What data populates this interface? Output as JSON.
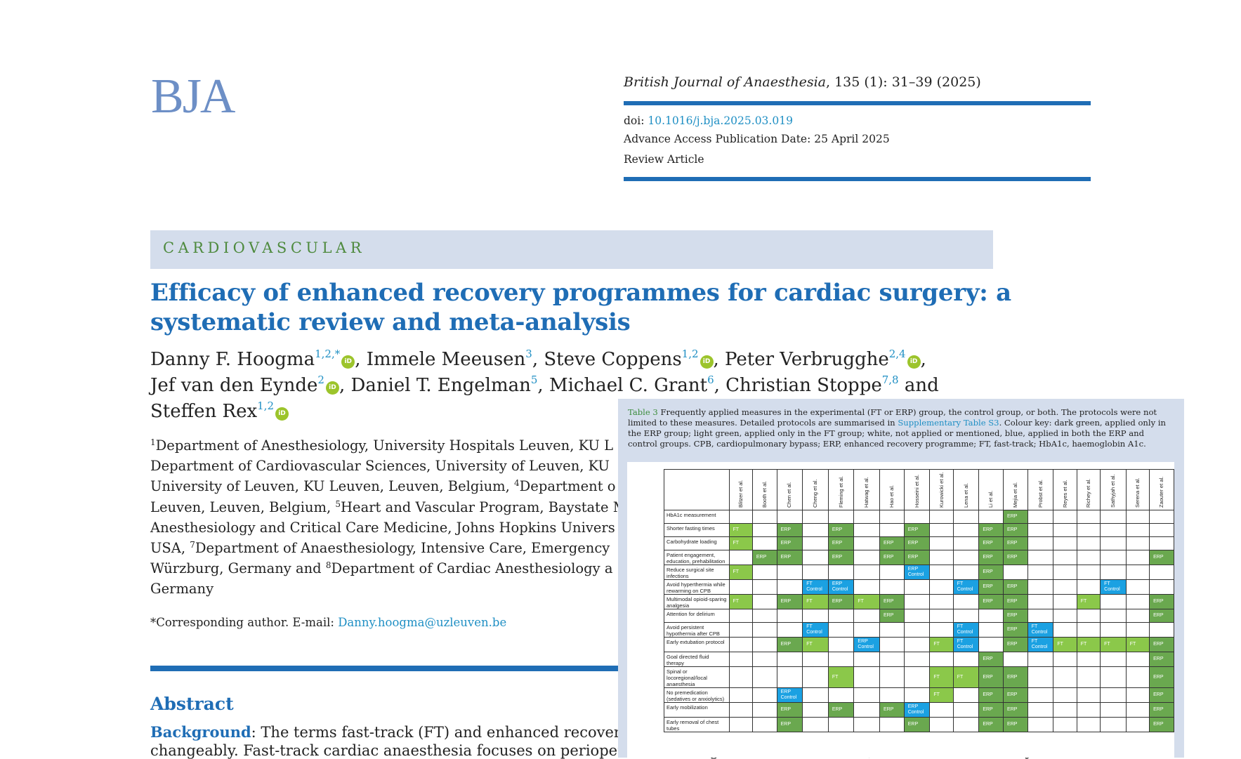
{
  "header": {
    "logo": "BJA",
    "journal_name": "British Journal of Anaesthesia",
    "journal_citation": ", 135 (1): 31–39 (2025)",
    "doi_label": "doi:",
    "doi_value": "10.1016/j.bja.2025.03.019",
    "publication_date": "Advance Access Publication Date: 25 April 2025",
    "article_type": "Review Article"
  },
  "section_label": "CARDIOVASCULAR",
  "title": "Efficacy of enhanced recovery programmes for cardiac surgery: a systematic review and meta-analysis",
  "authors": {
    "a1": "Danny F. Hoogma",
    "a1_sup": "1,2,*",
    "a2": ", Immele Meeusen",
    "a2_sup": "3",
    "a3": ", Steve Coppens",
    "a3_sup": "1,2",
    "a4": ", Peter Verbrugghe",
    "a4_sup": "2,4",
    "sep1": ",",
    "a5": "Jef van den Eynde",
    "a5_sup": "2",
    "a6": ", Daniel T. Engelman",
    "a6_sup": "5",
    "a7": ", Michael C. Grant",
    "a7_sup": "6",
    "a8": ", Christian Stoppe",
    "a8_sup": "7,8",
    "and": " and",
    "a9": "Steffen Rex",
    "a9_sup": "1,2",
    "orcid_icon": "iD"
  },
  "affiliations": {
    "l1_sup": "1",
    "l1": "Department of Anesthesiology, University Hospitals Leuven, KU L",
    "l2": "Department of Cardiovascular Sciences, University of Leuven, KU",
    "l3_a": "University of Leuven, KU Leuven, Leuven, Belgium, ",
    "l3_sup": "4",
    "l3_b": "Department o",
    "l4_a": "Leuven, Leuven, Belgium, ",
    "l4_sup": "5",
    "l4_b": "Heart and Vascular Program, Baystate M",
    "l5": "Anesthesiology and Critical Care Medicine, Johns Hopkins Univers",
    "l6_a": "USA, ",
    "l6_sup": "7",
    "l6_b": "Department of Anaesthesiology, Intensive Care, Emergency",
    "l7_a": "Würzburg, Germany and ",
    "l7_sup": "8",
    "l7_b": "Department of Cardiac Anesthesiology a",
    "l8": "Germany"
  },
  "corresponding": {
    "label": "*Corresponding author. E-mail: ",
    "email": "Danny.hoogma@uzleuven.be"
  },
  "abstract": {
    "heading": "Abstract",
    "bg_label": "Background",
    "line1": ": The terms fast-track (FT) and enhanced recovery a",
    "line2": "changeably. Fast-track cardiac anaesthesia focuses on perioperative strategies, whereas ERAS (or enhanced recovery"
  },
  "table3": {
    "label": "Table 3",
    "caption_a": " Frequently applied measures in the experimental (FT or ERP) group, the control group, or both. The protocols were not limited to these measures. Detailed protocols are summarised in ",
    "caption_link": "Supplementary Table S3",
    "caption_b": ". Colour key: dark green, applied only in the ERP group; light green, applied only in the FT group; white, not applied or mentioned, blue, applied in both the ERP and control groups. CPB, cardiopulmonary bypass; ERP, enhanced recovery programme; FT, fast-track; HbA1c, haemoglobin A1c.",
    "colors": {
      "dark_green": "#6aa84f",
      "light_green": "#8bc84a",
      "blue": "#1ba1e2",
      "white": "#ffffff"
    },
    "columns": [
      "Blitzer et al.",
      "Booth et al.",
      "Chen et al.",
      "Cheng et al.",
      "Fleming et al.",
      "Hatwag et al.",
      "Hao et al.",
      "Hosseini et al.",
      "Kurowicki et al.",
      "Lena et al.",
      "Li et al.",
      "Mejia et al.",
      "Probst et al.",
      "Reyes et al.",
      "Richey et al.",
      "Sathyjah et al.",
      "Serena et al.",
      "Zaouter et al."
    ],
    "rows": [
      {
        "label": "HbA1c measurement",
        "cells": [
          "",
          "",
          "",
          "",
          "",
          "",
          "",
          "",
          "",
          "",
          "",
          "E",
          "",
          "",
          "",
          "",
          "",
          ""
        ]
      },
      {
        "label": "Shorter fasting times",
        "cells": [
          "F",
          "",
          "E",
          "",
          "E",
          "",
          "",
          "E",
          "",
          "",
          "E",
          "E",
          "",
          "",
          "",
          "",
          "",
          ""
        ]
      },
      {
        "label": "Carbohydrate loading",
        "cells": [
          "F",
          "",
          "E",
          "",
          "E",
          "",
          "E",
          "E",
          "",
          "",
          "E",
          "E",
          "",
          "",
          "",
          "",
          "",
          ""
        ]
      },
      {
        "label": "Patient engagement, education, prehabilitation",
        "cells": [
          "",
          "E",
          "E",
          "",
          "E",
          "",
          "E",
          "E",
          "",
          "",
          "E",
          "E",
          "",
          "",
          "",
          "",
          "",
          "E"
        ]
      },
      {
        "label": "Reduce surgical site infections",
        "cells": [
          "F",
          "",
          "",
          "",
          "",
          "",
          "",
          "EC",
          "",
          "",
          "E",
          "",
          "",
          "",
          "",
          "",
          "",
          ""
        ]
      },
      {
        "label": "Avoid hyperthermia while rewarming on CPB",
        "cells": [
          "",
          "",
          "",
          "FC",
          "EC",
          "",
          "",
          "",
          "",
          "FC",
          "E",
          "E",
          "",
          "",
          "",
          "FC",
          "",
          ""
        ]
      },
      {
        "label": "Multimodal opioid-sparing analgesia",
        "cells": [
          "F",
          "",
          "E",
          "F",
          "E",
          "F",
          "E",
          "",
          "",
          "",
          "E",
          "E",
          "",
          "",
          "F",
          "",
          "",
          "E"
        ]
      },
      {
        "label": "Attention for delirium",
        "cells": [
          "",
          "",
          "",
          "",
          "",
          "",
          "E",
          "",
          "",
          "",
          "",
          "E",
          "",
          "",
          "",
          "",
          "",
          "E"
        ]
      },
      {
        "label": "Avoid persistent hypothermia after CPB",
        "cells": [
          "",
          "",
          "",
          "FC",
          "",
          "",
          "",
          "",
          "",
          "FC",
          "",
          "E",
          "FC",
          "",
          "",
          "",
          "",
          ""
        ]
      },
      {
        "label": "Early extubation protocol",
        "cells": [
          "",
          "",
          "E",
          "F",
          "",
          "EC",
          "",
          "",
          "F",
          "FC",
          "",
          "E",
          "FC",
          "F",
          "F",
          "F",
          "F",
          "E"
        ]
      },
      {
        "label": "Goal directed fluid therapy",
        "cells": [
          "",
          "",
          "",
          "",
          "",
          "",
          "",
          "",
          "",
          "",
          "E",
          "",
          "",
          "",
          "",
          "",
          "",
          "E"
        ]
      },
      {
        "label": "Spinal or locoregional/local anaesthesia",
        "cells": [
          "",
          "",
          "",
          "",
          "F",
          "",
          "",
          "",
          "F",
          "F",
          "E",
          "E",
          "",
          "",
          "",
          "",
          "",
          "E"
        ]
      },
      {
        "label": "No premedication (sedatives or anxiolytics)",
        "cells": [
          "",
          "",
          "EC",
          "",
          "",
          "",
          "",
          "",
          "F",
          "",
          "E",
          "E",
          "",
          "",
          "",
          "",
          "",
          "E"
        ]
      },
      {
        "label": "Early mobilization",
        "cells": [
          "",
          "",
          "E",
          "",
          "E",
          "",
          "E",
          "EC",
          "",
          "",
          "E",
          "E",
          "",
          "",
          "",
          "",
          "",
          "E"
        ]
      },
      {
        "label": "Early removal of chest tubes",
        "cells": [
          "",
          "",
          "E",
          "",
          "",
          "",
          "",
          "E",
          "",
          "",
          "E",
          "E",
          "",
          "",
          "",
          "",
          "",
          "E"
        ]
      }
    ],
    "cell_text": {
      "E": "ERP",
      "F": "FT",
      "EC": "ERP Control",
      "FC": "FT Control"
    }
  }
}
